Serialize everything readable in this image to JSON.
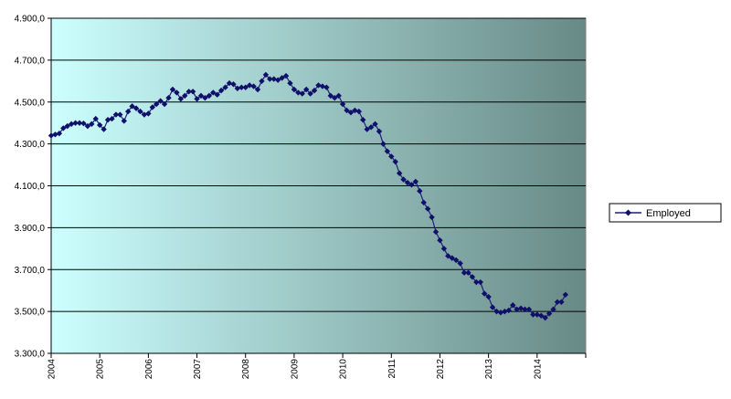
{
  "chart_data": {
    "type": "line",
    "title": "",
    "xlabel": "",
    "ylabel": "",
    "ylim": [
      3300,
      4900
    ],
    "y_ticks": [
      3300,
      3500,
      3700,
      3900,
      4100,
      4300,
      4500,
      4700,
      4900
    ],
    "y_tick_labels": [
      "3.300,0",
      "3.500,0",
      "3.700,0",
      "3.900,0",
      "4.100,0",
      "4.300,0",
      "4.500,0",
      "4.700,0",
      "4.900,0"
    ],
    "x_tick_labels": [
      "2004",
      "2005",
      "2006",
      "2007",
      "2008",
      "2009",
      "2010",
      "2011",
      "2012",
      "2013",
      "2014"
    ],
    "x_start_year": 2004,
    "x_end_year": 2015,
    "grid": true,
    "legend_position": "right",
    "colors": {
      "line": "#1f1f7a",
      "marker": "#10106a",
      "bg_left": "#ccffff",
      "bg_right": "#688a86"
    },
    "series": [
      {
        "name": "Employed",
        "x": [
          "2004-01",
          "2004-02",
          "2004-03",
          "2004-04",
          "2004-05",
          "2004-06",
          "2004-07",
          "2004-08",
          "2004-09",
          "2004-10",
          "2004-11",
          "2004-12",
          "2005-01",
          "2005-02",
          "2005-03",
          "2005-04",
          "2005-05",
          "2005-06",
          "2005-07",
          "2005-08",
          "2005-09",
          "2005-10",
          "2005-11",
          "2005-12",
          "2006-01",
          "2006-02",
          "2006-03",
          "2006-04",
          "2006-05",
          "2006-06",
          "2006-07",
          "2006-08",
          "2006-09",
          "2006-10",
          "2006-11",
          "2006-12",
          "2007-01",
          "2007-02",
          "2007-03",
          "2007-04",
          "2007-05",
          "2007-06",
          "2007-07",
          "2007-08",
          "2007-09",
          "2007-10",
          "2007-11",
          "2007-12",
          "2008-01",
          "2008-02",
          "2008-03",
          "2008-04",
          "2008-05",
          "2008-06",
          "2008-07",
          "2008-08",
          "2008-09",
          "2008-10",
          "2008-11",
          "2008-12",
          "2009-01",
          "2009-02",
          "2009-03",
          "2009-04",
          "2009-05",
          "2009-06",
          "2009-07",
          "2009-08",
          "2009-09",
          "2009-10",
          "2009-11",
          "2009-12",
          "2010-01",
          "2010-02",
          "2010-03",
          "2010-04",
          "2010-05",
          "2010-06",
          "2010-07",
          "2010-08",
          "2010-09",
          "2010-10",
          "2010-11",
          "2010-12",
          "2011-01",
          "2011-02",
          "2011-03",
          "2011-04",
          "2011-05",
          "2011-06",
          "2011-07",
          "2011-08",
          "2011-09",
          "2011-10",
          "2011-11",
          "2011-12",
          "2012-01",
          "2012-02",
          "2012-03",
          "2012-04",
          "2012-05",
          "2012-06",
          "2012-07",
          "2012-08",
          "2012-09",
          "2012-10",
          "2012-11",
          "2012-12",
          "2013-01",
          "2013-02",
          "2013-03",
          "2013-04",
          "2013-05",
          "2013-06",
          "2013-07",
          "2013-08",
          "2013-09",
          "2013-10",
          "2013-11",
          "2013-12",
          "2014-01",
          "2014-02",
          "2014-03",
          "2014-04",
          "2014-05",
          "2014-06",
          "2014-07",
          "2014-08"
        ],
        "values": [
          4340,
          4345,
          4350,
          4375,
          4385,
          4395,
          4400,
          4400,
          4398,
          4385,
          4395,
          4420,
          4390,
          4370,
          4415,
          4420,
          4440,
          4440,
          4410,
          4455,
          4480,
          4470,
          4455,
          4440,
          4445,
          4475,
          4490,
          4505,
          4490,
          4520,
          4560,
          4545,
          4515,
          4530,
          4550,
          4550,
          4515,
          4530,
          4520,
          4530,
          4545,
          4535,
          4555,
          4570,
          4590,
          4585,
          4565,
          4570,
          4570,
          4580,
          4575,
          4560,
          4600,
          4630,
          4610,
          4610,
          4605,
          4615,
          4625,
          4590,
          4560,
          4545,
          4540,
          4560,
          4540,
          4555,
          4580,
          4575,
          4570,
          4530,
          4520,
          4530,
          4490,
          4460,
          4450,
          4460,
          4455,
          4415,
          4370,
          4380,
          4395,
          4360,
          4300,
          4265,
          4240,
          4215,
          4160,
          4130,
          4115,
          4105,
          4120,
          4075,
          4020,
          3990,
          3950,
          3880,
          3840,
          3800,
          3765,
          3755,
          3745,
          3730,
          3685,
          3685,
          3665,
          3640,
          3640,
          3585,
          3570,
          3520,
          3500,
          3495,
          3500,
          3505,
          3530,
          3510,
          3515,
          3510,
          3510,
          3485,
          3485,
          3480,
          3470,
          3490,
          3510,
          3545,
          3545,
          3580
        ]
      }
    ]
  }
}
